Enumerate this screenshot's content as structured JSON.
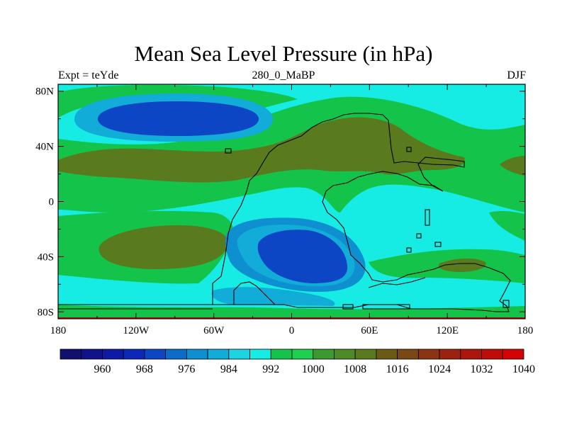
{
  "title": "Mean Sea Level Pressure (in hPa)",
  "subtitle_left": "Expt = teYde",
  "subtitle_center": "280_0_MaBP",
  "subtitle_right": "DJF",
  "y_ticks": [
    "80N",
    "40N",
    "0",
    "40S",
    "80S"
  ],
  "x_ticks": [
    "180",
    "120W",
    "60W",
    "0",
    "60E",
    "120E",
    "180"
  ],
  "colorbar": {
    "labels": [
      "960",
      "968",
      "976",
      "984",
      "992",
      "1000",
      "1008",
      "1016",
      "1024",
      "1032",
      "1040"
    ],
    "colors": [
      "#12106e",
      "#10128c",
      "#0d1aa6",
      "#0b28b8",
      "#0d46c4",
      "#0d6cc8",
      "#0d8fd0",
      "#12acd8",
      "#1ed4e2",
      "#16ece4",
      "#14c44a",
      "#1ed04e",
      "#3a9a2e",
      "#4e8a28",
      "#5a7a1e",
      "#6a5a16",
      "#7a4812",
      "#8a3412",
      "#9a220e",
      "#ac160c",
      "#c00c08",
      "#d40404"
    ]
  },
  "colors": {
    "land_low": "#16ece4",
    "cyan_mid": "#12acd8",
    "blue_low": "#0d8fd0",
    "blue_deep": "#0d46c4",
    "green": "#14c44a",
    "olive": "#5a7a1e",
    "bottom_edge": "#c00c08"
  }
}
